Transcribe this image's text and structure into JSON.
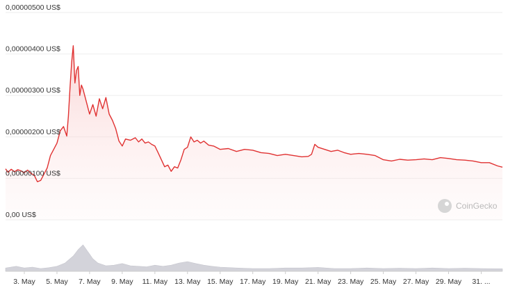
{
  "chart_data": {
    "type": "area",
    "currency_suffix": "US$",
    "y_ticks": [
      {
        "value": 0,
        "label": "0,00 US$"
      },
      {
        "value": 1e-06,
        "label": "0,00000100 US$"
      },
      {
        "value": 2e-06,
        "label": "0,00000200 US$"
      },
      {
        "value": 3e-06,
        "label": "0,00000300 US$"
      },
      {
        "value": 4e-06,
        "label": "0,00000400 US$"
      },
      {
        "value": 5e-06,
        "label": "0,00000500 US$"
      }
    ],
    "ylim": [
      0,
      5e-06
    ],
    "xlim": [
      1.85,
      32.3
    ],
    "x_ticks": [
      {
        "value": 3,
        "label": "3. May"
      },
      {
        "value": 5,
        "label": "5. May"
      },
      {
        "value": 7,
        "label": "7. May"
      },
      {
        "value": 9,
        "label": "9. May"
      },
      {
        "value": 11,
        "label": "11. May"
      },
      {
        "value": 13,
        "label": "13. May"
      },
      {
        "value": 15,
        "label": "15. May"
      },
      {
        "value": 17,
        "label": "17. May"
      },
      {
        "value": 19,
        "label": "19. May"
      },
      {
        "value": 21,
        "label": "21. May"
      },
      {
        "value": 23,
        "label": "23. May"
      },
      {
        "value": 25,
        "label": "25. May"
      },
      {
        "value": 27,
        "label": "27. May"
      },
      {
        "value": 29,
        "label": "29. May"
      },
      {
        "value": 31,
        "label": "31. ..."
      }
    ],
    "grid": true,
    "line_color": "#e03131",
    "fill_color": "#f8c9c9",
    "volume_color": "#d3d3da",
    "price": {
      "x": [
        1.85,
        2.0,
        2.2,
        2.4,
        2.6,
        2.8,
        3.0,
        3.2,
        3.4,
        3.6,
        3.8,
        4.0,
        4.2,
        4.4,
        4.6,
        4.8,
        5.0,
        5.2,
        5.4,
        5.6,
        5.7,
        5.8,
        5.9,
        6.0,
        6.1,
        6.2,
        6.3,
        6.4,
        6.5,
        6.6,
        6.8,
        7.0,
        7.2,
        7.4,
        7.6,
        7.8,
        8.0,
        8.2,
        8.4,
        8.6,
        8.8,
        9.0,
        9.2,
        9.5,
        9.8,
        10.0,
        10.2,
        10.4,
        10.6,
        10.8,
        11.0,
        11.2,
        11.4,
        11.6,
        11.8,
        12.0,
        12.2,
        12.4,
        12.6,
        12.8,
        13.0,
        13.2,
        13.4,
        13.6,
        13.8,
        14.0,
        14.3,
        14.6,
        15.0,
        15.5,
        16.0,
        16.5,
        17.0,
        17.5,
        18.0,
        18.5,
        19.0,
        19.5,
        20.0,
        20.4,
        20.6,
        20.8,
        21.0,
        21.4,
        21.8,
        22.2,
        22.6,
        23.0,
        23.5,
        24.0,
        24.5,
        25.0,
        25.5,
        26.0,
        26.5,
        27.0,
        27.5,
        28.0,
        28.5,
        29.0,
        29.5,
        30.0,
        30.5,
        31.0,
        31.5,
        32.0,
        32.3
      ],
      "y": [
        1.23e-06,
        1.15e-06,
        1.22e-06,
        1.16e-06,
        1.21e-06,
        1.18e-06,
        1.14e-06,
        1.2e-06,
        1.12e-06,
        1.08e-06,
        9.2e-07,
        9.5e-07,
        1.1e-06,
        1.25e-06,
        1.55e-06,
        1.7e-06,
        1.85e-06,
        2.15e-06,
        2.25e-06,
        2.02e-06,
        2.5e-06,
        3.2e-06,
        3.8e-06,
        4.2e-06,
        3.3e-06,
        3.6e-06,
        3.7e-06,
        3e-06,
        3.25e-06,
        3.15e-06,
        2.85e-06,
        2.55e-06,
        2.78e-06,
        2.5e-06,
        2.92e-06,
        2.68e-06,
        2.95e-06,
        2.55e-06,
        2.4e-06,
        2.2e-06,
        1.9e-06,
        1.78e-06,
        1.95e-06,
        1.92e-06,
        1.98e-06,
        1.88e-06,
        1.95e-06,
        1.85e-06,
        1.88e-06,
        1.82e-06,
        1.78e-06,
        1.62e-06,
        1.45e-06,
        1.28e-06,
        1.32e-06,
        1.17e-06,
        1.28e-06,
        1.25e-06,
        1.45e-06,
        1.7e-06,
        1.75e-06,
        2e-06,
        1.88e-06,
        1.92e-06,
        1.85e-06,
        1.9e-06,
        1.8e-06,
        1.78e-06,
        1.7e-06,
        1.72e-06,
        1.65e-06,
        1.7e-06,
        1.68e-06,
        1.62e-06,
        1.6e-06,
        1.55e-06,
        1.58e-06,
        1.55e-06,
        1.52e-06,
        1.53e-06,
        1.58e-06,
        1.82e-06,
        1.75e-06,
        1.7e-06,
        1.65e-06,
        1.68e-06,
        1.62e-06,
        1.58e-06,
        1.6e-06,
        1.58e-06,
        1.55e-06,
        1.45e-06,
        1.42e-06,
        1.46e-06,
        1.44e-06,
        1.45e-06,
        1.47e-06,
        1.45e-06,
        1.5e-06,
        1.48e-06,
        1.45e-06,
        1.44e-06,
        1.42e-06,
        1.38e-06,
        1.38e-06,
        1.3e-06,
        1.27e-06
      ]
    },
    "volume": {
      "x": [
        1.85,
        2.5,
        3.0,
        3.5,
        4.0,
        4.5,
        5.0,
        5.5,
        6.0,
        6.3,
        6.6,
        6.9,
        7.2,
        7.5,
        8.0,
        8.5,
        9.0,
        9.5,
        10.0,
        10.5,
        11.0,
        11.5,
        12.0,
        12.5,
        13.0,
        13.5,
        14.0,
        14.5,
        15.0,
        16.0,
        17.0,
        18.0,
        19.0,
        20.0,
        21.0,
        22.0,
        23.0,
        24.0,
        25.0,
        26.0,
        27.0,
        28.0,
        29.0,
        30.0,
        31.0,
        32.3
      ],
      "y": [
        0.12,
        0.18,
        0.12,
        0.15,
        0.1,
        0.13,
        0.18,
        0.3,
        0.55,
        0.78,
        0.95,
        0.7,
        0.45,
        0.3,
        0.2,
        0.22,
        0.28,
        0.2,
        0.18,
        0.16,
        0.22,
        0.18,
        0.22,
        0.3,
        0.35,
        0.28,
        0.22,
        0.18,
        0.15,
        0.12,
        0.1,
        0.1,
        0.12,
        0.12,
        0.14,
        0.1,
        0.1,
        0.12,
        0.1,
        0.11,
        0.1,
        0.12,
        0.1,
        0.11,
        0.1,
        0.09
      ]
    }
  },
  "watermark": {
    "brand": "CoinGecko"
  }
}
